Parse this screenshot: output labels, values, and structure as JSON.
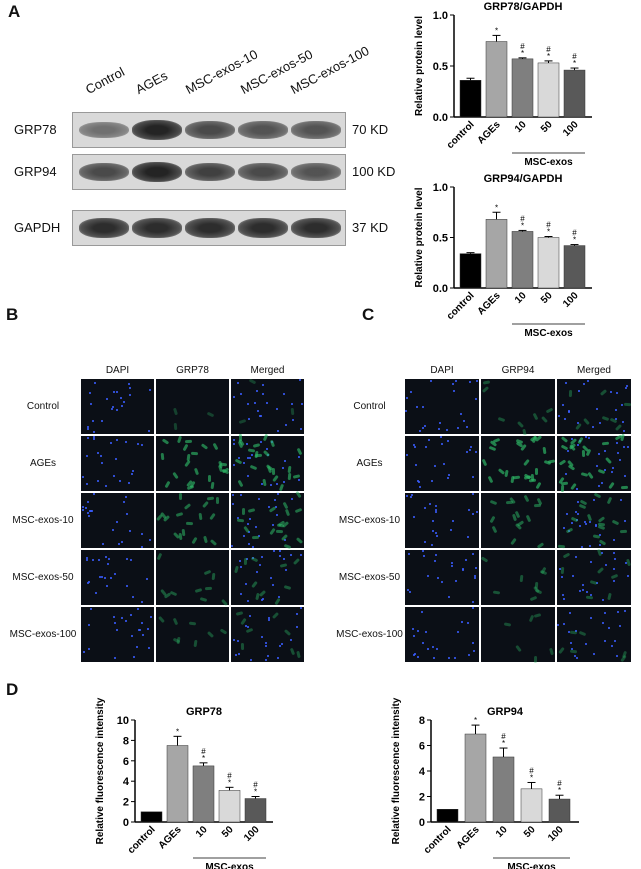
{
  "panels": {
    "A": "A",
    "B": "B",
    "C": "C",
    "D": "D"
  },
  "blot": {
    "lanes": [
      "Control",
      "AGEs",
      "MSC-exos-10",
      "MSC-exos-50",
      "MSC-exos-100"
    ],
    "rows": [
      {
        "label": "GRP78",
        "kd": "70 KD",
        "intensity": [
          0.55,
          0.95,
          0.75,
          0.7,
          0.7
        ]
      },
      {
        "label": "GRP94",
        "kd": "100 KD",
        "intensity": [
          0.75,
          0.95,
          0.8,
          0.75,
          0.7
        ]
      },
      {
        "label": "GAPDH",
        "kd": "37 KD",
        "intensity": [
          0.9,
          0.9,
          0.9,
          0.9,
          0.9
        ]
      }
    ]
  },
  "panelB": {
    "headers": [
      "DAPI",
      "GRP78",
      "Merged"
    ],
    "rows": [
      "Control",
      "AGEs",
      "MSC-exos-10",
      "MSC-exos-50",
      "MSC-exos-100"
    ]
  },
  "panelC": {
    "headers": [
      "DAPI",
      "GRP94",
      "Merged"
    ],
    "rows": [
      "Control",
      "AGEs",
      "MSC-exos-10",
      "MSC-exos-50",
      "MSC-exos-100"
    ]
  },
  "colors": {
    "control": "#000000",
    "AGEs": "#a6a6a6",
    "10": "#7f7f7f",
    "50": "#d9d9d9",
    "100": "#595959",
    "dapi": "#3a5cff",
    "green": "#2fbf6a"
  },
  "chart_data": [
    {
      "type": "bar",
      "title": "GRP78/GAPDH",
      "ylabel": "Relative protein level",
      "ylim": [
        0,
        1.0
      ],
      "yticks": [
        "0.0",
        "0.5",
        "1.0"
      ],
      "categories": [
        "control",
        "AGEs",
        "10",
        "50",
        "100"
      ],
      "group_label": "MSC-exos",
      "values": [
        0.36,
        0.74,
        0.57,
        0.53,
        0.46
      ],
      "errors": [
        0.02,
        0.06,
        0.01,
        0.02,
        0.02
      ],
      "annotations": [
        "",
        "*",
        "#\n*",
        "#\n*",
        "#\n*"
      ]
    },
    {
      "type": "bar",
      "title": "GRP94/GAPDH",
      "ylabel": "Relative protein level",
      "ylim": [
        0,
        1.0
      ],
      "yticks": [
        "0.0",
        "0.5",
        "1.0"
      ],
      "categories": [
        "control",
        "AGEs",
        "10",
        "50",
        "100"
      ],
      "group_label": "MSC-exos",
      "values": [
        0.34,
        0.68,
        0.56,
        0.5,
        0.42
      ],
      "errors": [
        0.01,
        0.07,
        0.01,
        0.01,
        0.01
      ],
      "annotations": [
        "",
        "*",
        "#\n*",
        "#\n*",
        "#\n*"
      ]
    },
    {
      "type": "bar",
      "title": "GRP78",
      "ylabel": "Relative fluorescence intensity",
      "ylim": [
        0,
        10
      ],
      "yticks": [
        "0",
        "2",
        "4",
        "6",
        "8",
        "10"
      ],
      "categories": [
        "control",
        "AGEs",
        "10",
        "50",
        "100"
      ],
      "group_label": "MSC-exos",
      "values": [
        1.0,
        7.5,
        5.5,
        3.1,
        2.3
      ],
      "errors": [
        0,
        0.9,
        0.3,
        0.3,
        0.2
      ],
      "annotations": [
        "",
        "*",
        "#\n*",
        "#\n*",
        "#\n*"
      ]
    },
    {
      "type": "bar",
      "title": "GRP94",
      "ylabel": "Relative fluorescence intensity",
      "ylim": [
        0,
        8
      ],
      "yticks": [
        "0",
        "2",
        "4",
        "6",
        "8"
      ],
      "categories": [
        "control",
        "AGEs",
        "10",
        "50",
        "100"
      ],
      "group_label": "MSC-exos",
      "values": [
        1.0,
        6.9,
        5.1,
        2.6,
        1.8
      ],
      "errors": [
        0,
        0.7,
        0.7,
        0.5,
        0.3
      ],
      "annotations": [
        "",
        "*",
        "#\n*",
        "#\n*",
        "#\n*"
      ]
    }
  ]
}
